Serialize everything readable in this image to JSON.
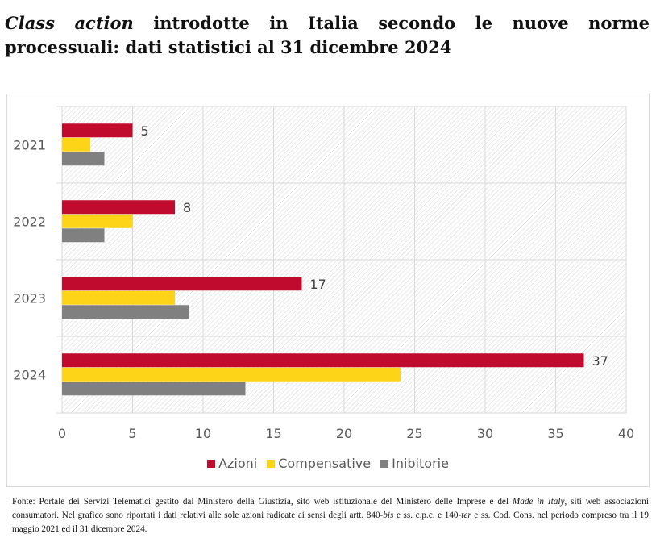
{
  "title": {
    "italic": "Class action",
    "rest": " introdotte in Italia secondo le nuove norme processuali: dati statistici al 31 dicembre 2024"
  },
  "chart_data": {
    "type": "bar",
    "orientation": "horizontal",
    "categories": [
      "2021",
      "2022",
      "2023",
      "2024"
    ],
    "series": [
      {
        "name": "Azioni",
        "values": [
          5,
          8,
          17,
          37
        ],
        "color": "#C00A2E",
        "labels": true
      },
      {
        "name": "Compensative",
        "values": [
          2,
          5,
          8,
          24
        ],
        "color": "#FDD417",
        "labels": false
      },
      {
        "name": "Inibitorie",
        "values": [
          3,
          3,
          9,
          13
        ],
        "color": "#808080",
        "labels": false
      }
    ],
    "xlim": [
      0,
      40
    ],
    "xticks": [
      "0",
      "5",
      "10",
      "15",
      "20",
      "25",
      "30",
      "35",
      "40"
    ],
    "grid": true,
    "legend": "bottom"
  },
  "source": {
    "p1": "Fonte: Portale dei Servizi Telematici gestito dal Ministero della Giustizia, sito web istituzionale del Ministero delle Imprese e del ",
    "i1": "Made in Italy",
    "p2": ", siti web associazioni consumatori. Nel grafico sono riportati i dati relativi alle sole azioni radicate ai sensi degli artt. 840-",
    "i2": "bis",
    "p3": " e ss. c.p.c. e 140-",
    "i3": "ter",
    "p4": " e ss. Cod. Cons. nel periodo compreso tra il 19 maggio 2021 ed il 31 dicembre 2024."
  }
}
